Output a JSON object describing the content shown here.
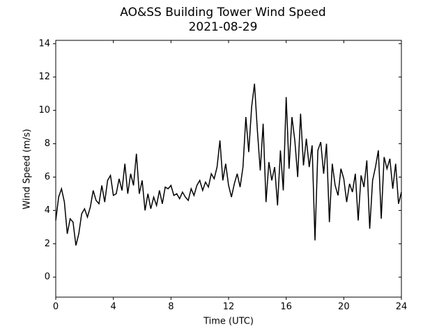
{
  "chart_data": {
    "type": "line",
    "title": "AO&SS Building Tower Wind Speed",
    "subtitle": "2021-08-29",
    "xlabel": "Time (UTC)",
    "ylabel": "Wind Speed (m/s)",
    "xlim": [
      0,
      24
    ],
    "ylim": [
      -1.2,
      14.2
    ],
    "xticks": [
      0,
      4,
      8,
      12,
      16,
      20,
      24
    ],
    "yticks": [
      0,
      2,
      4,
      6,
      8,
      10,
      12,
      14
    ],
    "x": [
      0,
      0.2,
      0.4,
      0.6,
      0.8,
      1,
      1.2,
      1.4,
      1.6,
      1.8,
      2,
      2.2,
      2.4,
      2.6,
      2.8,
      3,
      3.2,
      3.4,
      3.6,
      3.8,
      4,
      4.2,
      4.4,
      4.6,
      4.8,
      5,
      5.2,
      5.4,
      5.6,
      5.8,
      6,
      6.2,
      6.4,
      6.6,
      6.8,
      7,
      7.2,
      7.4,
      7.6,
      7.8,
      8,
      8.2,
      8.4,
      8.6,
      8.8,
      9,
      9.2,
      9.4,
      9.6,
      9.8,
      10,
      10.2,
      10.4,
      10.6,
      10.8,
      11,
      11.2,
      11.4,
      11.6,
      11.8,
      12,
      12.2,
      12.4,
      12.6,
      12.8,
      13,
      13.2,
      13.4,
      13.6,
      13.8,
      14,
      14.2,
      14.4,
      14.6,
      14.8,
      15,
      15.2,
      15.4,
      15.6,
      15.8,
      16,
      16.2,
      16.4,
      16.6,
      16.8,
      17,
      17.2,
      17.4,
      17.6,
      17.8,
      18,
      18.2,
      18.4,
      18.6,
      18.8,
      19,
      19.2,
      19.4,
      19.6,
      19.8,
      20,
      20.2,
      20.4,
      20.6,
      20.8,
      21,
      21.2,
      21.4,
      21.6,
      21.8,
      22,
      22.2,
      22.4,
      22.6,
      22.8,
      23,
      23.2,
      23.4,
      23.6,
      23.8,
      24
    ],
    "series": [
      {
        "color": "#000000",
        "values": [
          3.4,
          4.8,
          5.3,
          4.5,
          2.6,
          3.5,
          3.3,
          1.9,
          2.6,
          3.8,
          4.1,
          3.6,
          4.2,
          5.2,
          4.6,
          4.4,
          5.5,
          4.5,
          5.8,
          6.1,
          4.9,
          5.0,
          5.9,
          5.2,
          6.8,
          5.0,
          6.2,
          5.5,
          7.4,
          5.0,
          5.8,
          4.0,
          5.0,
          4.1,
          4.8,
          4.3,
          5.2,
          4.4,
          5.4,
          5.3,
          5.5,
          4.9,
          5.0,
          4.7,
          5.1,
          4.8,
          4.6,
          5.3,
          4.9,
          5.5,
          5.8,
          5.2,
          5.7,
          5.4,
          6.2,
          5.9,
          6.6,
          8.2,
          5.8,
          6.8,
          5.5,
          4.8,
          5.6,
          6.2,
          5.4,
          6.6,
          9.6,
          7.5,
          10.2,
          11.6,
          8.8,
          6.4,
          9.2,
          4.5,
          6.9,
          5.8,
          6.6,
          4.3,
          7.6,
          5.2,
          10.8,
          6.5,
          9.6,
          8.2,
          6.0,
          9.8,
          6.7,
          8.3,
          6.6,
          7.9,
          2.2,
          7.6,
          8.1,
          6.2,
          8.0,
          3.3,
          6.8,
          5.5,
          4.9,
          6.5,
          5.9,
          4.5,
          5.6,
          5.1,
          6.2,
          3.4,
          6.1,
          5.4,
          7.0,
          2.9,
          5.8,
          6.6,
          7.6,
          3.5,
          7.2,
          6.5,
          7.1,
          5.3,
          6.8,
          4.4,
          5.1
        ]
      }
    ]
  }
}
